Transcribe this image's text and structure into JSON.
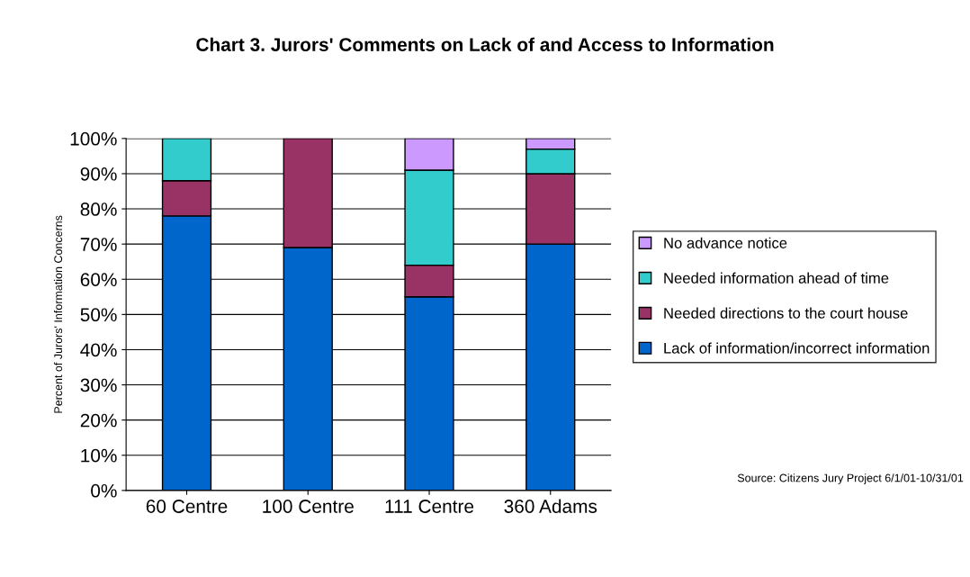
{
  "chart_data": {
    "type": "bar",
    "stacked": true,
    "title": "Chart 3. Jurors' Comments on Lack of and Access to Information",
    "ylabel": "Percent of Jurors' Information Concerns",
    "categories": [
      "60 Centre",
      "100 Centre",
      "111 Centre",
      "360 Adams"
    ],
    "series": [
      {
        "name": "Lack of information/incorrect information",
        "color": "#0066cc",
        "values": [
          78,
          69,
          55,
          70
        ]
      },
      {
        "name": "Needed directions to the court house",
        "color": "#993366",
        "values": [
          10,
          31,
          9,
          20
        ]
      },
      {
        "name": "Needed information ahead of time",
        "color": "#33cccc",
        "values": [
          12,
          null,
          27,
          7
        ]
      },
      {
        "name": "No advance notice",
        "color": "#cc99ff",
        "values": [
          null,
          null,
          9,
          3
        ]
      }
    ],
    "ylim": [
      0,
      100
    ],
    "yticks": [
      {
        "value": 0,
        "label": "0%"
      },
      {
        "value": 10,
        "label": "10%"
      },
      {
        "value": 20,
        "label": "20%"
      },
      {
        "value": 30,
        "label": "30%"
      },
      {
        "value": 40,
        "label": "40%"
      },
      {
        "value": 50,
        "label": "50%"
      },
      {
        "value": 60,
        "label": "60%"
      },
      {
        "value": 70,
        "label": "70%"
      },
      {
        "value": 80,
        "label": "80%"
      },
      {
        "value": 90,
        "label": "90%"
      },
      {
        "value": 100,
        "label": "100%"
      }
    ],
    "grid": "y",
    "legend": "right",
    "annotations": [
      "Source: Citizens Jury Project 6/1/01-10/31/01"
    ]
  }
}
